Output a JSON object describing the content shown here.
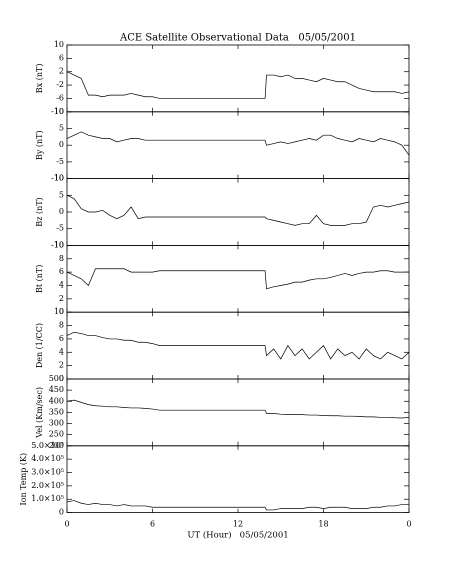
{
  "chart_data": [
    {
      "type": "line",
      "title": "ACE Satellite Observational Data   05/05/2001",
      "ylabel": "Bx (nT)",
      "ylim": [
        -10,
        10
      ],
      "yticks": [
        -10,
        -6,
        -2,
        2,
        6,
        10
      ],
      "x": [
        0,
        0.5,
        1,
        1.5,
        2,
        2.5,
        3,
        3.5,
        4,
        4.5,
        5,
        5.5,
        6,
        6.5,
        7,
        13.9,
        14,
        14.5,
        15,
        15.5,
        16,
        16.5,
        17,
        17.5,
        18,
        18.5,
        19,
        19.5,
        20,
        20.5,
        21,
        21.5,
        22,
        22.5,
        23,
        23.5,
        24
      ],
      "values": [
        2,
        1,
        0,
        -5,
        -5,
        -5.5,
        -5,
        -5,
        -5,
        -4.5,
        -5,
        -5.5,
        -5.5,
        -6,
        -6,
        -6,
        1,
        1,
        0.5,
        1,
        0,
        0,
        -0.5,
        -1,
        0,
        -0.5,
        -1,
        -1,
        -2,
        -3,
        -3.5,
        -4,
        -4,
        -4,
        -4,
        -4.5,
        -4
      ]
    },
    {
      "type": "line",
      "ylabel": "By (nT)",
      "ylim": [
        -10,
        10
      ],
      "yticks": [
        -10,
        -5,
        0,
        5,
        10
      ],
      "x": [
        0,
        0.5,
        1,
        1.5,
        2,
        2.5,
        3,
        3.5,
        4,
        4.5,
        5,
        5.5,
        6,
        6.5,
        7,
        13.9,
        14,
        14.5,
        15,
        15.5,
        16,
        16.5,
        17,
        17.5,
        18,
        18.5,
        19,
        19.5,
        20,
        20.5,
        21,
        21.5,
        22,
        22.5,
        23,
        23.5,
        24
      ],
      "values": [
        2,
        3,
        4,
        3,
        2.5,
        2,
        2,
        1,
        1.5,
        2,
        2,
        1.5,
        1.5,
        1.5,
        1.5,
        1.5,
        0,
        0.5,
        1,
        0.5,
        1,
        1.5,
        2,
        1.5,
        3,
        3,
        2,
        1.5,
        1,
        2,
        1.5,
        1,
        2,
        1.5,
        1,
        0,
        -3
      ]
    },
    {
      "type": "line",
      "ylabel": "Bz (nT)",
      "ylim": [
        -10,
        10
      ],
      "yticks": [
        -10,
        -5,
        0,
        5,
        10
      ],
      "x": [
        0,
        0.5,
        1,
        1.5,
        2,
        2.5,
        3,
        3.5,
        4,
        4.5,
        5,
        5.5,
        6,
        6.5,
        7,
        13.9,
        14,
        14.5,
        15,
        15.5,
        16,
        16.5,
        17,
        17.5,
        18,
        18.5,
        19,
        19.5,
        20,
        20.5,
        21,
        21.5,
        22,
        22.5,
        23,
        23.5,
        24
      ],
      "values": [
        5,
        4,
        1,
        0,
        0,
        0.5,
        -1,
        -2,
        -1,
        1.5,
        -2,
        -1.5,
        -1.5,
        -1.5,
        -1.5,
        -1.5,
        -2,
        -2.5,
        -3,
        -3.5,
        -4,
        -3.5,
        -3.5,
        -1,
        -3.5,
        -4,
        -4,
        -4,
        -3.5,
        -3.5,
        -3,
        1.5,
        2,
        1.5,
        2,
        2.5,
        3
      ]
    },
    {
      "type": "line",
      "ylabel": "Bt (nT)",
      "ylim": [
        0,
        10
      ],
      "yticks": [
        0,
        2,
        4,
        6,
        8,
        10
      ],
      "x": [
        0,
        0.5,
        1,
        1.5,
        2,
        2.5,
        3,
        3.5,
        4,
        4.5,
        5,
        5.5,
        6,
        6.5,
        7,
        13.9,
        14,
        14.5,
        15,
        15.5,
        16,
        16.5,
        17,
        17.5,
        18,
        18.5,
        19,
        19.5,
        20,
        20.5,
        21,
        21.5,
        22,
        22.5,
        23,
        23.5,
        24
      ],
      "values": [
        6,
        5.5,
        5,
        4,
        6.5,
        6.5,
        6.5,
        6.5,
        6.5,
        6,
        6,
        6,
        6,
        6.2,
        6.2,
        6.2,
        3.5,
        3.8,
        4,
        4.2,
        4.5,
        4.5,
        4.8,
        5,
        5,
        5.2,
        5.5,
        5.8,
        5.5,
        5.8,
        6,
        6,
        6.2,
        6.2,
        6,
        6,
        6
      ]
    },
    {
      "type": "line",
      "ylabel": "Den (1/CC)",
      "ylim": [
        0,
        10
      ],
      "yticks": [
        0,
        2,
        4,
        6,
        8,
        10
      ],
      "x": [
        0,
        0.5,
        1,
        1.5,
        2,
        2.5,
        3,
        3.5,
        4,
        4.5,
        5,
        5.5,
        6,
        6.5,
        7,
        13.9,
        14,
        14.5,
        15,
        15.5,
        16,
        16.5,
        17,
        17.5,
        18,
        18.5,
        19,
        19.5,
        20,
        20.5,
        21,
        21.5,
        22,
        22.5,
        23,
        23.5,
        24
      ],
      "values": [
        6.5,
        7,
        6.8,
        6.5,
        6.5,
        6.2,
        6,
        6,
        5.8,
        5.8,
        5.5,
        5.5,
        5.3,
        5,
        5,
        5,
        3.5,
        4.5,
        3,
        5,
        3.5,
        4.5,
        3,
        4,
        5,
        3,
        4.5,
        3.5,
        4,
        3,
        4.5,
        3.5,
        3,
        4,
        3.5,
        3,
        4
      ]
    },
    {
      "type": "line",
      "ylabel": "Vel (Km/sec)",
      "ylim": [
        200,
        500
      ],
      "yticks": [
        200,
        250,
        300,
        350,
        400,
        450,
        500
      ],
      "x": [
        0,
        0.5,
        1,
        1.5,
        2,
        2.5,
        3,
        3.5,
        4,
        4.5,
        5,
        5.5,
        6,
        6.5,
        7,
        13.9,
        14,
        14.5,
        15,
        15.5,
        16,
        16.5,
        17,
        17.5,
        18,
        18.5,
        19,
        19.5,
        20,
        20.5,
        21,
        21.5,
        22,
        22.5,
        23,
        23.5,
        24
      ],
      "values": [
        400,
        405,
        395,
        385,
        380,
        378,
        375,
        375,
        372,
        370,
        370,
        368,
        365,
        360,
        360,
        360,
        345,
        345,
        342,
        340,
        340,
        340,
        338,
        338,
        336,
        335,
        335,
        333,
        333,
        332,
        330,
        330,
        328,
        328,
        326,
        325,
        327
      ]
    },
    {
      "type": "line",
      "ylabel": "Ion Temp (K)",
      "ylim": [
        0,
        500000
      ],
      "yticks": [
        0,
        {
          "value": 100000,
          "label": "1.0×10⁵"
        },
        {
          "value": 200000,
          "label": "2.0×10⁵"
        },
        {
          "value": 300000,
          "label": "3.0×10⁵"
        },
        {
          "value": 400000,
          "label": "4.0×10⁵"
        },
        {
          "value": 500000,
          "label": "5.0×10⁵"
        }
      ],
      "xlabel": "UT (Hour)   05/05/2001",
      "xlim": [
        0,
        24
      ],
      "xticks": [
        0,
        6,
        12,
        18,
        {
          "value": 24,
          "label": "0"
        }
      ],
      "x": [
        0,
        0.5,
        1,
        1.5,
        2,
        2.5,
        3,
        3.5,
        4,
        4.5,
        5,
        5.5,
        6,
        6.5,
        7,
        13.9,
        14,
        14.5,
        15,
        15.5,
        16,
        16.5,
        17,
        17.5,
        18,
        18.5,
        19,
        19.5,
        20,
        20.5,
        21,
        21.5,
        22,
        22.5,
        23,
        23.5,
        24
      ],
      "values": [
        80000,
        90000,
        70000,
        60000,
        70000,
        60000,
        60000,
        50000,
        60000,
        50000,
        50000,
        50000,
        40000,
        40000,
        40000,
        40000,
        20000,
        20000,
        30000,
        30000,
        30000,
        30000,
        40000,
        40000,
        30000,
        40000,
        40000,
        40000,
        30000,
        30000,
        30000,
        40000,
        40000,
        50000,
        50000,
        60000,
        60000
      ]
    }
  ]
}
